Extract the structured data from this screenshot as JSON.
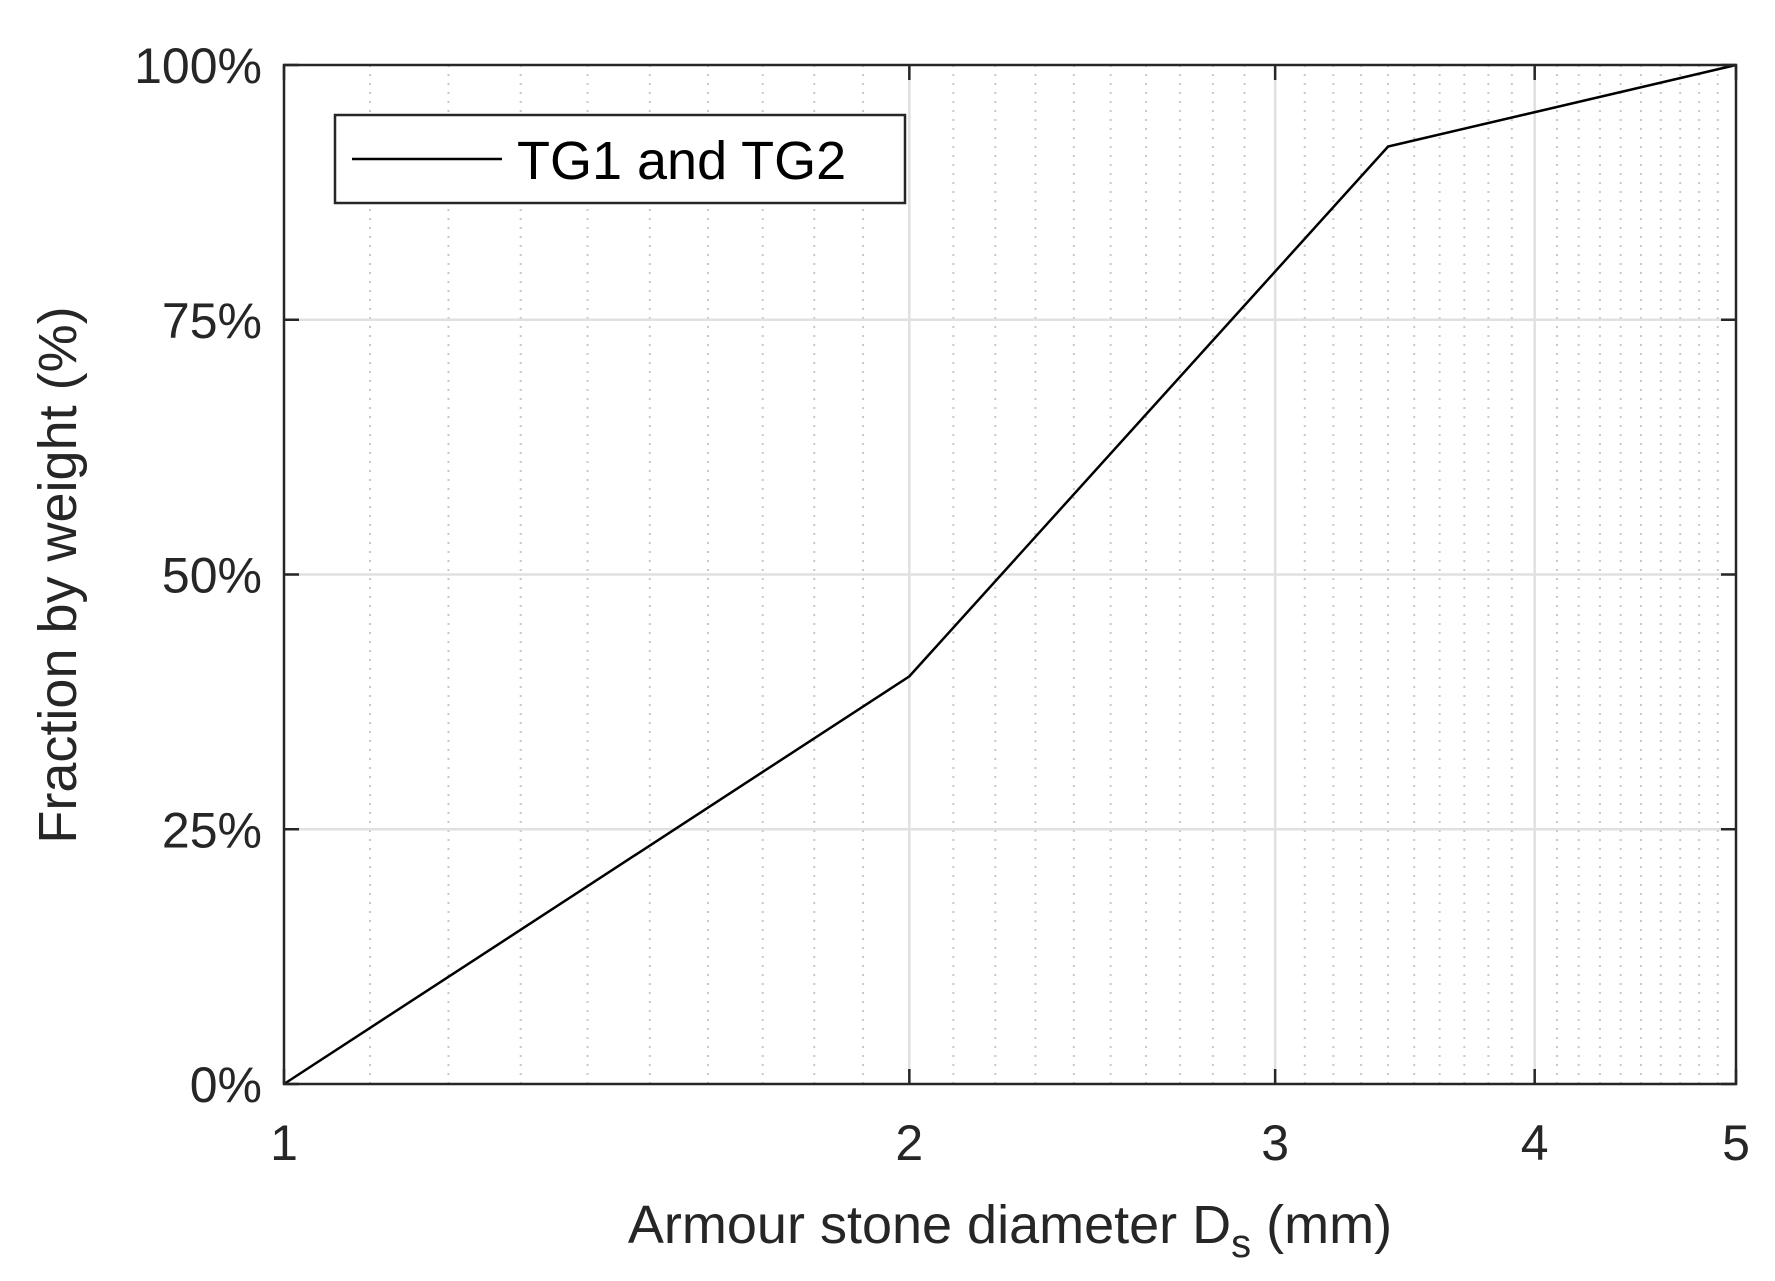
{
  "chart_data": {
    "type": "line",
    "xscale": "log",
    "xlim": [
      1,
      5
    ],
    "ylim": [
      0,
      100
    ],
    "grid": true,
    "minor_grid": true,
    "legend_position": "top-left",
    "x_ticks": [
      1,
      2,
      3,
      4,
      5
    ],
    "x_tick_labels": [
      "1",
      "2",
      "3",
      "4",
      "5"
    ],
    "y_ticks": [
      0,
      25,
      50,
      75,
      100
    ],
    "y_tick_labels": [
      "0%",
      "25%",
      "50%",
      "75%",
      "100%"
    ],
    "xlabel": "Armour stone diameter D",
    "xlabel_subscript": "s",
    "xlabel_suffix": " (mm)",
    "ylabel": "Fraction by weight (%)",
    "series": [
      {
        "name": "TG1 and TG2",
        "color": "#000000",
        "x": [
          1.0,
          2.0,
          3.4,
          5.0
        ],
        "y": [
          0,
          40,
          92,
          100
        ]
      }
    ]
  }
}
